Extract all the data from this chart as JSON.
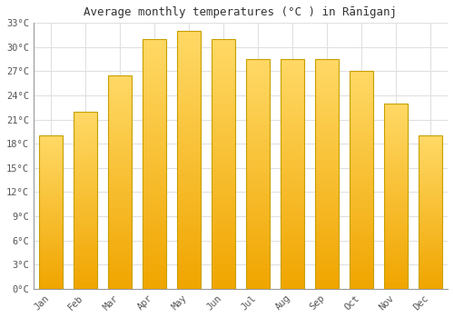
{
  "title": "Average monthly temperatures (°C ) in Rānīganj",
  "months": [
    "Jan",
    "Feb",
    "Mar",
    "Apr",
    "May",
    "Jun",
    "Jul",
    "Aug",
    "Sep",
    "Oct",
    "Nov",
    "Dec"
  ],
  "values": [
    19,
    22,
    26.5,
    31,
    32,
    31,
    28.5,
    28.5,
    28.5,
    27,
    23,
    19
  ],
  "bar_color_top": "#FFD966",
  "bar_color_bottom": "#F0A500",
  "bar_border_color": "#C8A000",
  "ylim": [
    0,
    33
  ],
  "yticks": [
    0,
    3,
    6,
    9,
    12,
    15,
    18,
    21,
    24,
    27,
    30,
    33
  ],
  "background_color": "#ffffff",
  "plot_area_color": "#ffffff",
  "grid_color": "#e0e0e0",
  "title_fontsize": 9,
  "tick_fontsize": 7.5,
  "tick_color": "#555555",
  "font_family": "monospace"
}
